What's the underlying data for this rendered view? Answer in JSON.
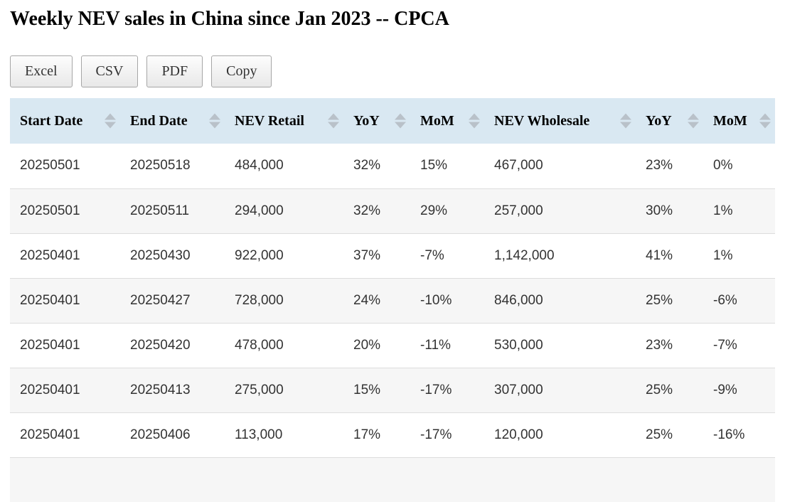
{
  "title": "Weekly NEV sales in China since Jan 2023 -- CPCA",
  "buttons": [
    {
      "label": "Excel"
    },
    {
      "label": "CSV"
    },
    {
      "label": "PDF"
    },
    {
      "label": "Copy"
    }
  ],
  "icons": {
    "sort": "sort-up-down-triangles"
  },
  "table": {
    "columns": [
      {
        "key": "start-date",
        "label": "Start Date"
      },
      {
        "key": "end-date",
        "label": "End Date"
      },
      {
        "key": "nev-retail",
        "label": "NEV Retail"
      },
      {
        "key": "yoy-retail",
        "label": "YoY"
      },
      {
        "key": "mom-retail",
        "label": "MoM"
      },
      {
        "key": "nev-wholesale",
        "label": "NEV Wholesale"
      },
      {
        "key": "yoy-wholesale",
        "label": "YoY"
      },
      {
        "key": "mom-wholesale",
        "label": "MoM"
      }
    ],
    "rows": [
      [
        "20250501",
        "20250518",
        "484,000",
        "32%",
        "15%",
        "467,000",
        "23%",
        "0%"
      ],
      [
        "20250501",
        "20250511",
        "294,000",
        "32%",
        "29%",
        "257,000",
        "30%",
        "1%"
      ],
      [
        "20250401",
        "20250430",
        "922,000",
        "37%",
        "-7%",
        "1,142,000",
        "41%",
        "1%"
      ],
      [
        "20250401",
        "20250427",
        "728,000",
        "24%",
        "-10%",
        "846,000",
        "25%",
        "-6%"
      ],
      [
        "20250401",
        "20250420",
        "478,000",
        "20%",
        "-11%",
        "530,000",
        "23%",
        "-7%"
      ],
      [
        "20250401",
        "20250413",
        "275,000",
        "15%",
        "-17%",
        "307,000",
        "25%",
        "-9%"
      ],
      [
        "20250401",
        "20250406",
        "113,000",
        "17%",
        "-17%",
        "120,000",
        "25%",
        "-16%"
      ]
    ]
  },
  "colors": {
    "header_bg": "#d9e8f2",
    "stripe_bg": "#f6f6f6",
    "sort_icon": "#b9c1c9",
    "row_border": "#dddddd"
  }
}
